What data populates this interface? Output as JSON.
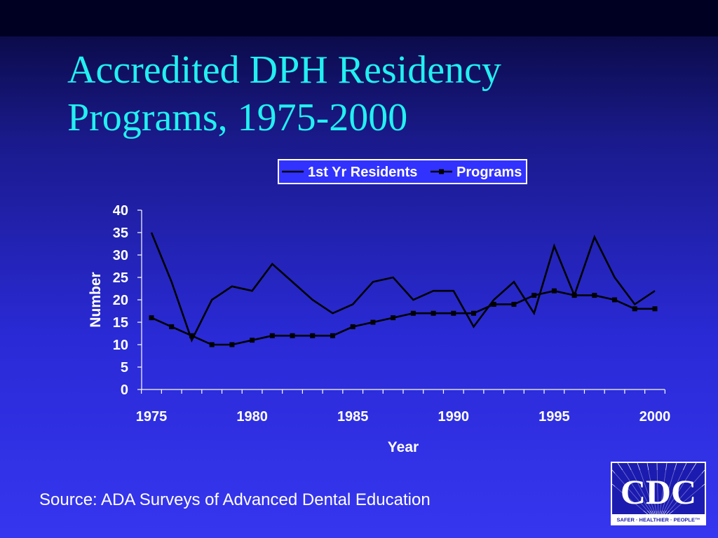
{
  "slide": {
    "title_line1": "Accredited DPH Residency",
    "title_line2": "Programs, 1975-2000",
    "source": "Source: ADA Surveys of Advanced Dental Education",
    "logo_text": "CDC",
    "logo_tagline": "SAFER · HEALTHIER · PEOPLE™"
  },
  "colors": {
    "title": "#22f0f0",
    "line": "#000000",
    "axis_text": "#ffffff",
    "legend_bg": "#3232ff"
  },
  "chart_data": {
    "type": "line",
    "title": "",
    "xlabel": "Year",
    "ylabel": "Number",
    "x": [
      1975,
      1976,
      1977,
      1978,
      1979,
      1980,
      1981,
      1982,
      1983,
      1984,
      1985,
      1986,
      1987,
      1988,
      1989,
      1990,
      1991,
      1992,
      1993,
      1994,
      1995,
      1996,
      1997,
      1998,
      1999,
      2000
    ],
    "x_ticks": [
      "1975",
      "1980",
      "1985",
      "1990",
      "1995",
      "2000"
    ],
    "y_ticks": [
      "0",
      "5",
      "10",
      "15",
      "20",
      "25",
      "30",
      "35",
      "40"
    ],
    "ylim": [
      0,
      40
    ],
    "xlim": [
      1975,
      2000
    ],
    "legend_position": "top-right",
    "grid": false,
    "series": [
      {
        "name": "1st Yr Residents",
        "marker": "none",
        "values": [
          35,
          24,
          11,
          20,
          23,
          22,
          28,
          24,
          20,
          17,
          19,
          24,
          25,
          20,
          22,
          22,
          14,
          20,
          24,
          17,
          32,
          21,
          34,
          25,
          19,
          22
        ]
      },
      {
        "name": "Programs",
        "marker": "square",
        "values": [
          16,
          14,
          12,
          10,
          10,
          11,
          12,
          12,
          12,
          12,
          14,
          15,
          16,
          17,
          17,
          17,
          17,
          19,
          19,
          21,
          22,
          21,
          21,
          20,
          18,
          18
        ]
      }
    ]
  }
}
